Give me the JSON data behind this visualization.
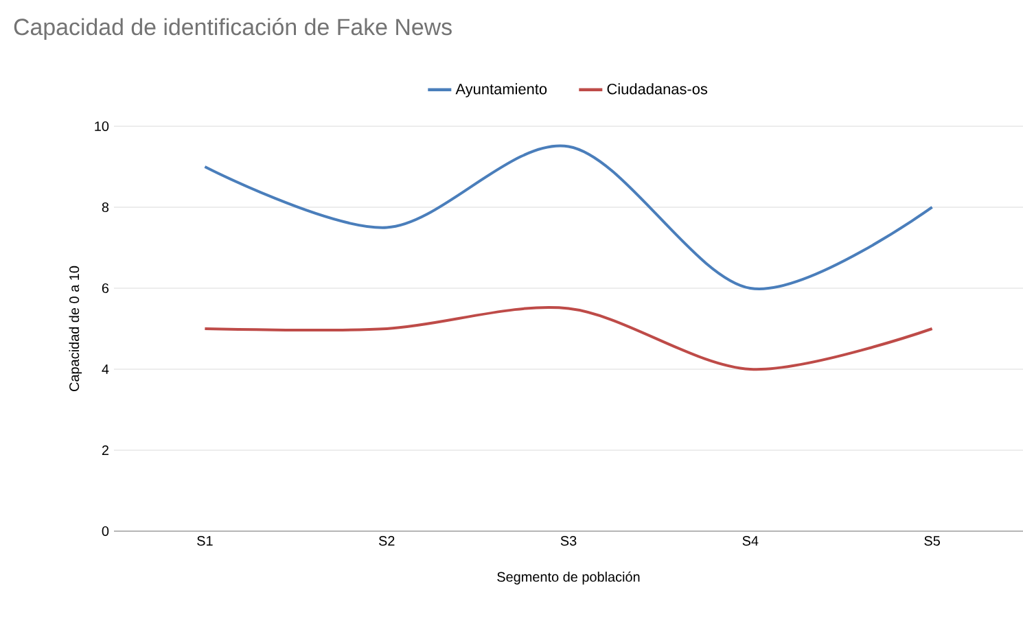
{
  "chart_data": {
    "type": "line",
    "title": "Capacidad de identificación de Fake News",
    "xlabel": "Segmento de población",
    "ylabel": "Capacidad de 0 a 10",
    "categories": [
      "S1",
      "S2",
      "S3",
      "S4",
      "S5"
    ],
    "series": [
      {
        "name": "Ayuntamiento",
        "color": "#4a7ebb",
        "values": [
          9,
          7.5,
          9.5,
          6,
          8
        ]
      },
      {
        "name": "Ciudadanas-os",
        "color": "#be4b48",
        "values": [
          5,
          5,
          5.5,
          4,
          5
        ]
      }
    ],
    "ylim": [
      0,
      10
    ],
    "yticks": [
      0,
      2,
      4,
      6,
      8,
      10
    ],
    "grid": "y",
    "legend": "top",
    "marker": "none"
  }
}
